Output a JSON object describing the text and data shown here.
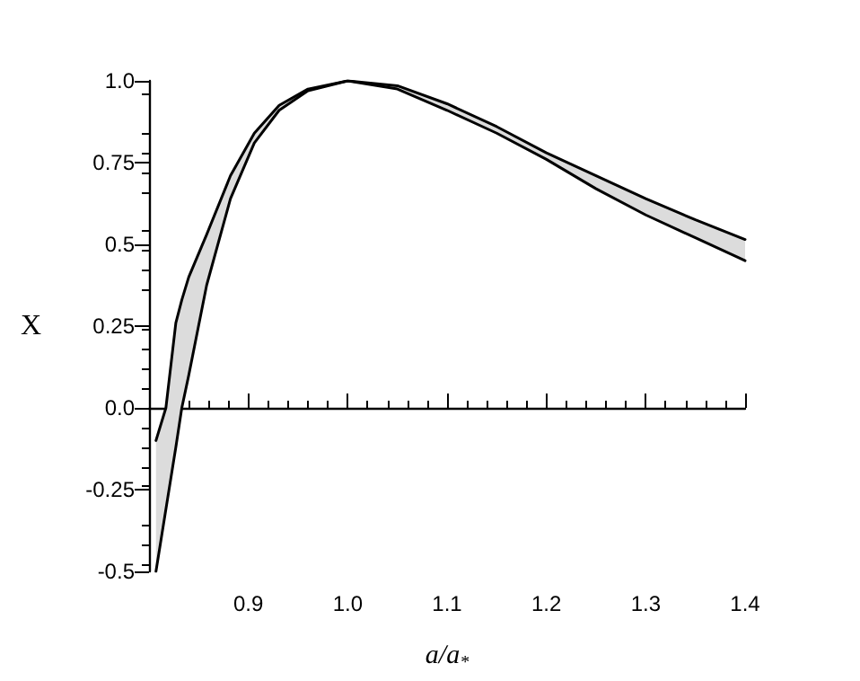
{
  "chart_data": {
    "type": "line",
    "xlabel": "a/a$_{*}$",
    "ylabel": "X",
    "x": [
      0.807,
      0.817,
      0.827,
      0.833,
      0.84,
      0.858,
      0.882,
      0.906,
      0.931,
      0.96,
      1.0,
      1.05,
      1.1,
      1.15,
      1.2,
      1.25,
      1.3,
      1.35,
      1.4
    ],
    "series": [
      {
        "color": "#000000",
        "values": [
          -0.1,
          0,
          0.26,
          0.33,
          0.4,
          0.53,
          0.71,
          0.84,
          0.925,
          0.975,
          1.0,
          0.975,
          0.91,
          0.84,
          0.76,
          0.67,
          0.59,
          0.52,
          0.45
        ],
        "lower": [
          -0.5,
          -0.31,
          -0.12,
          0,
          0.1,
          0.375,
          0.64,
          0.81,
          0.91,
          0.97,
          1.0,
          0.985,
          0.93,
          0.86,
          0.78,
          0.71,
          0.64,
          0.575,
          0.515
        ],
        "upper": [
          -0.1,
          0,
          0.26,
          0.33,
          0.4,
          0.53,
          0.71,
          0.84,
          0.925,
          0.975,
          1.0,
          0.975,
          0.91,
          0.84,
          0.76,
          0.67,
          0.59,
          0.52,
          0.45
        ]
      },
      {
        "color": "#000000",
        "values": [
          -0.5,
          -0.31,
          -0.12,
          0,
          0.1,
          0.375,
          0.64,
          0.81,
          0.91,
          0.97,
          1.0,
          0.985,
          0.93,
          0.86,
          0.78,
          0.71,
          0.64,
          0.575,
          0.515
        ]
      }
    ],
    "xlim": [
      0.8,
      1.4
    ],
    "xticks": [
      0.9,
      {
        "value": 1.0,
        "label": "1.0"
      },
      1.1,
      1.2,
      1.3,
      1.4
    ],
    "ylim": [
      -0.5,
      1.0
    ],
    "yticks": [
      -0.5,
      -0.25,
      {
        "value": 0,
        "label": "0.0"
      },
      0.25,
      0.5,
      0.75,
      {
        "value": 1.0,
        "label": "1.0"
      }
    ],
    "marker": "none",
    "line_style": "solid"
  }
}
